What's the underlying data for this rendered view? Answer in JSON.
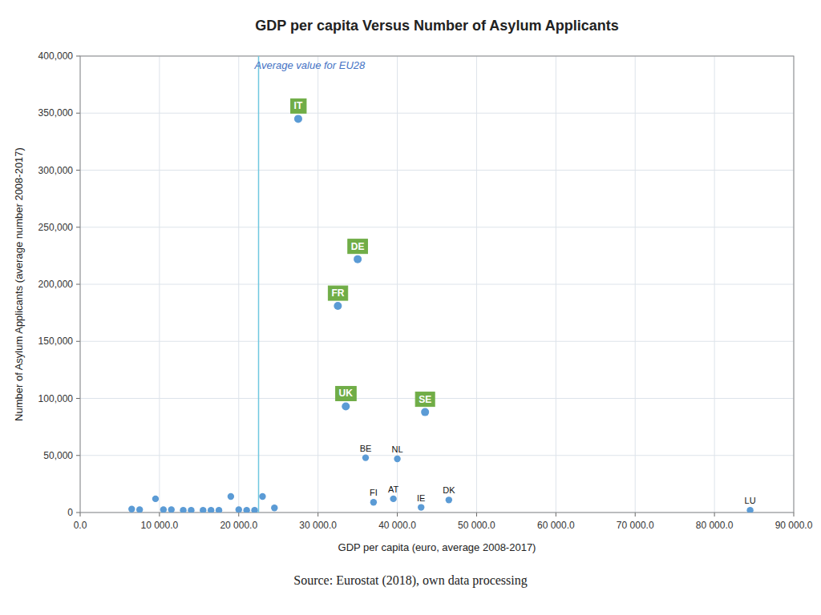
{
  "chart_data": {
    "type": "scatter",
    "title": "GDP per capita Versus Number of Asylum Applicants",
    "xlabel": "GDP per capita  (euro, average 2008-2017)",
    "ylabel": "Number of Asylum Applicants (average number 2008-2017)",
    "source": "Source: Eurostat (2018), own data processing",
    "x": [
      27500,
      35000,
      32500,
      33500,
      43500,
      36000,
      40000,
      37000,
      39500,
      43000,
      46500,
      84500,
      6500,
      7500,
      9500,
      10500,
      11500,
      13000,
      14000,
      15500,
      16500,
      17500,
      19000,
      20000,
      21000,
      22000,
      23000,
      24500
    ],
    "values": [
      345000,
      222000,
      181000,
      93000,
      88000,
      48000,
      47000,
      9000,
      12000,
      4500,
      11000,
      2000,
      3000,
      2500,
      12000,
      2500,
      2500,
      2000,
      2000,
      2000,
      2000,
      2000,
      14000,
      2500,
      2000,
      2000,
      14000,
      4000
    ],
    "point_labels": [
      "IT",
      "DE",
      "FR",
      "UK",
      "SE",
      "BE",
      "NL",
      "FI",
      "AT",
      "IE",
      "DK",
      "LU",
      null,
      null,
      null,
      null,
      null,
      null,
      null,
      null,
      null,
      null,
      null,
      null,
      null,
      null,
      null,
      null
    ],
    "highlight": [
      true,
      true,
      true,
      true,
      true,
      false,
      false,
      false,
      false,
      false,
      false,
      false,
      false,
      false,
      false,
      false,
      false,
      false,
      false,
      false,
      false,
      false,
      false,
      false,
      false,
      false,
      false,
      false
    ],
    "highlight_color": "#70ad47",
    "color": "#5b9bd5",
    "reference_line": {
      "x": 22500,
      "label": "Average value for EU28",
      "color": "#70c8e0",
      "label_color": "#4472c4"
    },
    "xlim": [
      0,
      90000
    ],
    "ylim": [
      0,
      400000
    ],
    "xticks": [
      {
        "value": 0,
        "label": "0.0"
      },
      {
        "value": 10000,
        "label": "10 000.0"
      },
      {
        "value": 20000,
        "label": "20 000.0"
      },
      {
        "value": 30000,
        "label": "30 000.0"
      },
      {
        "value": 40000,
        "label": "40 000.0"
      },
      {
        "value": 50000,
        "label": "50 000.0"
      },
      {
        "value": 60000,
        "label": "60 000.0"
      },
      {
        "value": 70000,
        "label": "70 000.0"
      },
      {
        "value": 80000,
        "label": "80 000.0"
      },
      {
        "value": 90000,
        "label": "90 000.0"
      }
    ],
    "yticks": [
      0,
      {
        "value": 50000,
        "label": "50,000"
      },
      {
        "value": 100000,
        "label": "100,000"
      },
      {
        "value": 150000,
        "label": "150,000"
      },
      {
        "value": 200000,
        "label": "200,000"
      },
      {
        "value": 250000,
        "label": "250,000"
      },
      {
        "value": 300000,
        "label": "300,000"
      },
      {
        "value": 350000,
        "label": "350,000"
      },
      {
        "value": 400000,
        "label": "400,000"
      }
    ],
    "grid": true
  }
}
